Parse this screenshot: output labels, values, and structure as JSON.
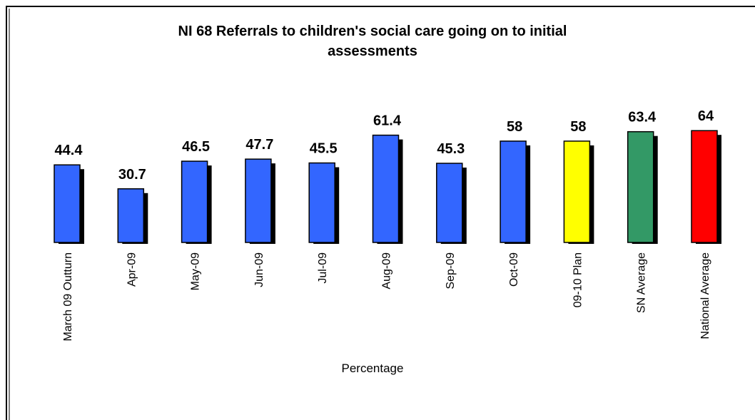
{
  "chart_data": {
    "type": "bar",
    "title_lines": [
      "NI 68 Referrals to children's social care going on to initial",
      "assessments"
    ],
    "xlabel": "Percentage",
    "ylabel": "",
    "ylim": [
      0,
      70
    ],
    "grid": false,
    "legend": "none",
    "categories": [
      "March 09 Outturn",
      "Apr-09",
      "May-09",
      "Jun-09",
      "Jul-09",
      "Aug-09",
      "Sep-09",
      "Oct-09",
      "09-10 Plan",
      "SN Average",
      "National Average"
    ],
    "values": [
      44.4,
      30.7,
      46.5,
      47.7,
      45.5,
      61.4,
      45.3,
      58,
      58,
      63.4,
      64
    ],
    "value_labels": [
      "44.4",
      "30.7",
      "46.5",
      "47.7",
      "45.5",
      "61.4",
      "45.3",
      "58",
      "58",
      "63.4",
      "64"
    ],
    "bar_colors": [
      "#3366ff",
      "#3366ff",
      "#3366ff",
      "#3366ff",
      "#3366ff",
      "#3366ff",
      "#3366ff",
      "#3366ff",
      "#ffff00",
      "#339966",
      "#ff0000"
    ],
    "shadow_color": "#000000",
    "frame_color": "#000000"
  }
}
